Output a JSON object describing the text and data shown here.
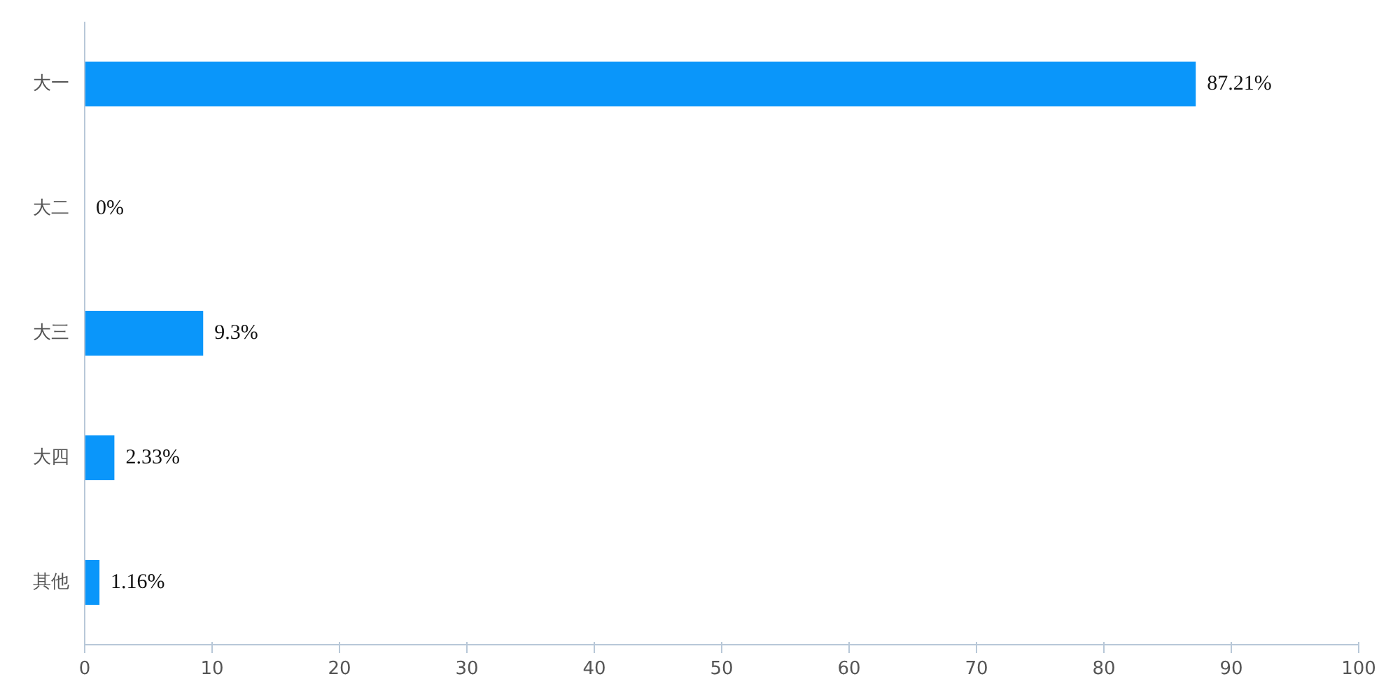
{
  "chart_data": {
    "type": "bar",
    "orientation": "horizontal",
    "categories": [
      "大一",
      "大二",
      "大三",
      "大四",
      "其他"
    ],
    "values": [
      87.21,
      0,
      9.3,
      2.33,
      1.16
    ],
    "value_labels": [
      "87.21%",
      "0%",
      "9.3%",
      "2.33%",
      "1.16%"
    ],
    "color": "#0a96fa",
    "xlim": [
      0,
      100
    ],
    "xticks": [
      0,
      10,
      20,
      30,
      40,
      50,
      60,
      70,
      80,
      90,
      100
    ],
    "grid": false
  }
}
